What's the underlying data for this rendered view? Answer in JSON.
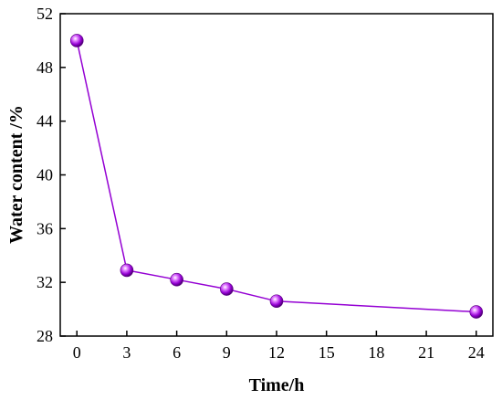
{
  "chart_data": {
    "type": "line",
    "title": "",
    "xlabel": "Time/h",
    "ylabel": "Water content /%",
    "xlim": [
      -1,
      25
    ],
    "ylim": [
      28,
      52
    ],
    "xticks": [
      0,
      3,
      6,
      9,
      12,
      15,
      18,
      21,
      24
    ],
    "yticks": [
      28,
      32,
      36,
      40,
      44,
      48,
      52
    ],
    "x_tick_labels": [
      "0",
      "3",
      "6",
      "9",
      "12",
      "15",
      "18",
      "21",
      "24"
    ],
    "y_tick_labels": [
      "28",
      "32",
      "36",
      "40",
      "44",
      "48",
      "52"
    ],
    "grid": false,
    "legend": "none",
    "series": [
      {
        "color": "#9400d3",
        "marker": "sphere",
        "x": [
          0,
          3,
          6,
          9,
          12,
          24
        ],
        "y": [
          50.0,
          32.9,
          32.2,
          31.5,
          30.6,
          29.8
        ]
      }
    ]
  }
}
